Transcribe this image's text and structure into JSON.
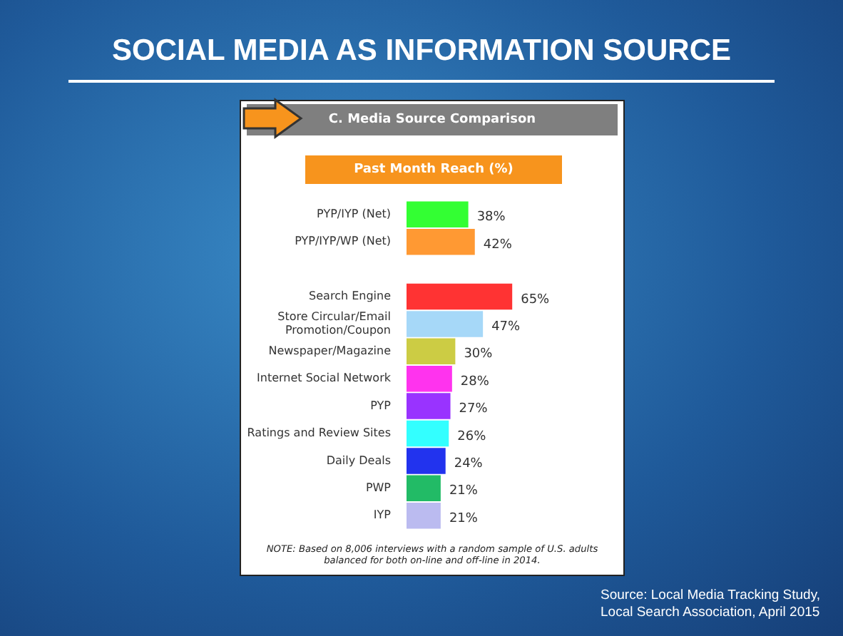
{
  "chart_data": {
    "type": "bar",
    "orientation": "horizontal",
    "title": "SOCIAL MEDIA AS INFORMATION SOURCE",
    "subtitle": "C.  Media Source Comparison",
    "xlabel": "Past Month Reach (%)",
    "categories": [
      "PYP/IYP (Net)",
      "PYP/IYP/WP (Net)",
      null,
      "Search Engine",
      "Store Circular/Email Promotion/Coupon",
      "Newspaper/Magazine",
      "Internet Social Network",
      "PYP",
      "Ratings and Review Sites",
      "Daily Deals",
      "PWP",
      "IYP"
    ],
    "values": [
      38,
      42,
      null,
      65,
      47,
      30,
      28,
      27,
      26,
      24,
      21,
      21
    ],
    "value_labels": [
      "38%",
      "42%",
      null,
      "65%",
      "47%",
      "30%",
      "28%",
      "27%",
      "26%",
      "24%",
      "21%",
      "21%"
    ],
    "colors": [
      "#33ff33",
      "#ff9933",
      "#ffffff",
      "#ff3333",
      "#a6d8f8",
      "#cccc44",
      "#ff33ee",
      "#9933ff",
      "#33ffff",
      "#2233ee",
      "#22bb66",
      "#bbbbf0"
    ],
    "tick_labels": "y",
    "legend": false,
    "annotations": [
      "NOTE: Based on 8,006 interviews with a random sample of U.S. adults balanced for both on-line and off-line in 2014.",
      "Source: Local Media Tracking Study, Local Search Association, April 2015"
    ]
  }
}
